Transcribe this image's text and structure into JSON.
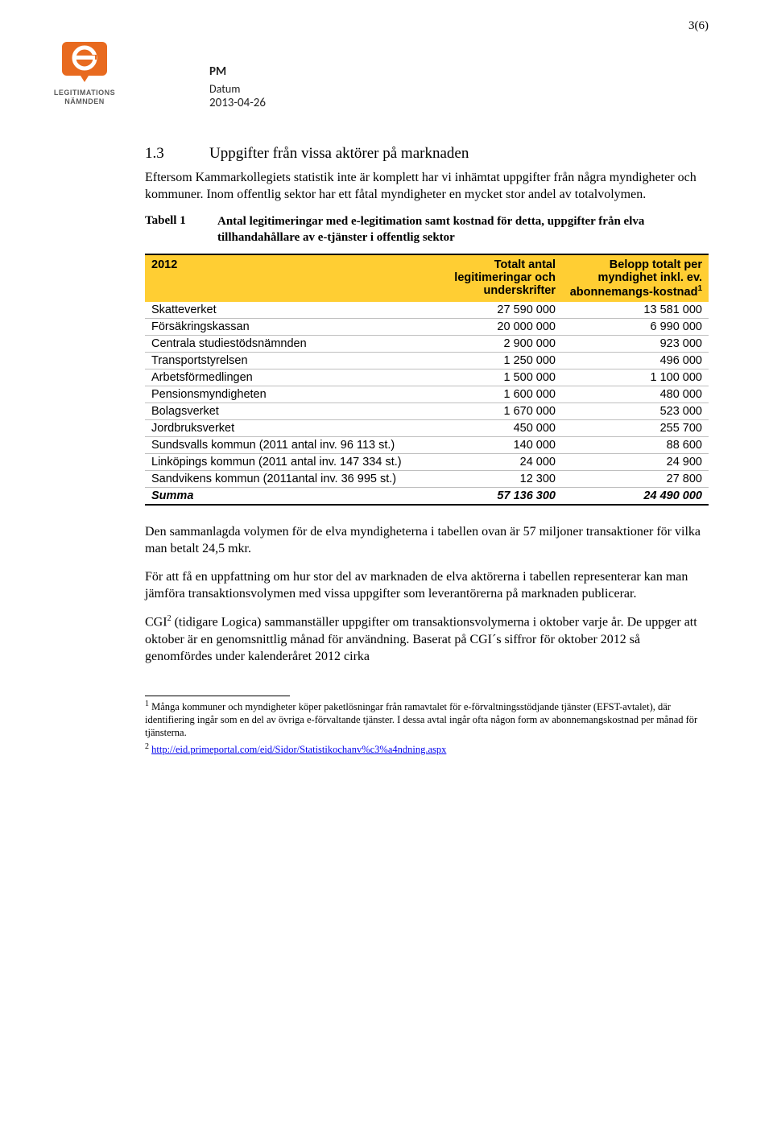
{
  "page_number": "3(6)",
  "logo": {
    "text_line1": "LEGITIMATIONS",
    "text_line2": "NÄMNDEN",
    "orange": "#e86a1f",
    "gray": "#5a5a5a"
  },
  "header": {
    "pm": "PM",
    "datum_label": "Datum",
    "date": "2013-04-26"
  },
  "section": {
    "num": "1.3",
    "title": "Uppgifter från vissa aktörer på marknaden"
  },
  "paras": {
    "p1": "Eftersom Kammarkollegiets statistik inte är komplett har vi inhämtat uppgifter från några myndigheter och kommuner. Inom offentlig sektor har ett fåtal myndigheter en mycket stor andel av totalvolymen.",
    "tabell_label": "Tabell 1",
    "tabell_title": "Antal legitimeringar med e-legitimation samt kostnad för detta, uppgifter från  elva tillhandahållare av e-tjänster i offentlig sektor",
    "p2": "Den sammanlagda volymen för de elva myndigheterna i tabellen ovan är 57 miljoner transaktioner för vilka man betalt 24,5 mkr.",
    "p3": "För att få en uppfattning om hur stor del av marknaden de elva aktörerna i tabellen representerar kan man jämföra transaktionsvolymen med vissa uppgifter som leverantörerna på marknaden publicerar.",
    "p4a": "CGI",
    "p4b": " (tidigare Logica) sammanställer uppgifter om transaktionsvolymerna i oktober varje år. De uppger att oktober är en genomsnittlig månad för användning. Baserat på CGI´s siffror för oktober 2012 så genomfördes under kalenderåret 2012 cirka"
  },
  "table": {
    "header_bg": "#ffce33",
    "col1": "2012",
    "col2": "Totalt antal legitimeringar och underskrifter",
    "col3a": "Belopp totalt per myndighet inkl. ev. abonnemangs-kostnad",
    "fn1": "1",
    "rows": [
      {
        "name": "Skatteverket",
        "a": "27 590 000",
        "b": "13 581 000"
      },
      {
        "name": "Försäkringskassan",
        "a": "20 000 000",
        "b": "6 990 000"
      },
      {
        "name": "Centrala studiestödsnämnden",
        "a": "2 900 000",
        "b": "923 000"
      },
      {
        "name": "Transportstyrelsen",
        "a": "1 250 000",
        "b": "496 000"
      },
      {
        "name": "Arbetsförmedlingen",
        "a": "1 500 000",
        "b": "1 100 000"
      },
      {
        "name": "Pensionsmyndigheten",
        "a": "1 600 000",
        "b": "480 000"
      },
      {
        "name": "Bolagsverket",
        "a": "1 670 000",
        "b": "523 000"
      },
      {
        "name": "Jordbruksverket",
        "a": "450 000",
        "b": "255 700"
      },
      {
        "name": "Sundsvalls kommun (2011 antal inv. 96 113 st.)",
        "a": "140 000",
        "b": "88 600"
      },
      {
        "name": "Linköpings kommun (2011 antal inv. 147 334 st.)",
        "a": "24 000",
        "b": "24 900"
      },
      {
        "name": "Sandvikens kommun (2011antal inv. 36 995 st.)",
        "a": "12 300",
        "b": "27 800"
      }
    ],
    "summa": {
      "name": "Summa",
      "a": "57 136 300",
      "b": "24 490 000"
    }
  },
  "footnotes": {
    "f1_num": "1",
    "f1": " Många kommuner och myndigheter köper paketlösningar från ramavtalet för e-förvaltningsstödjande tjänster (EFST-avtalet), där identifiering ingår som en del av övriga e-förvaltande tjänster. I dessa avtal ingår ofta någon form av abonnemangskostnad per månad för tjänsterna.",
    "f2_num": "2",
    "f2_link_text": "http://eid.primeportal.com/eid/Sidor/Statistikochanv%c3%a4ndning.aspx"
  }
}
